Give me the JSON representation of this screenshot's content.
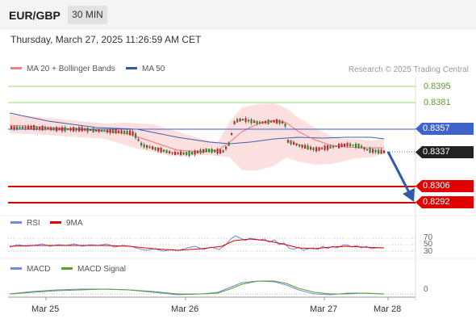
{
  "header": {
    "symbol": "EUR/GBP",
    "timeframe": "30 MIN"
  },
  "datetime": "Thursday, March 27, 2025 11:26:59 AM CET",
  "legend": {
    "ma20": "MA 20 + Bollinger Bands",
    "ma50": "MA 50",
    "copyright": "Research © 2025 Trading Central"
  },
  "levels": {
    "r2": "0.8395",
    "r1": "0.8381",
    "pivot": "0.8357",
    "last": "0.8337",
    "s1": "0.8306",
    "s2": "0.8292"
  },
  "rsi": {
    "label": "RSI",
    "ma_label": "9MA",
    "levels": [
      "70",
      "50",
      "30"
    ]
  },
  "macd": {
    "label": "MACD",
    "signal_label": "MACD Signal",
    "zero": "0"
  },
  "xaxis": [
    "Mar 25",
    "Mar 26",
    "Mar 27",
    "Mar 28"
  ],
  "colors": {
    "ma20": "#f08080",
    "ma50": "#2f5aa8",
    "bb_fill": "#fbd9d9",
    "resistance": "#7ac142",
    "pivot": "#3f63c8",
    "support": "#e00000",
    "last": "#222222",
    "rsi": "#6a8be0",
    "rsi_ma": "#e00000",
    "macd": "#6a8be0",
    "macd_signal": "#5aa02c",
    "candle_up": "#2c8c2c",
    "candle_down": "#c0282e"
  }
}
